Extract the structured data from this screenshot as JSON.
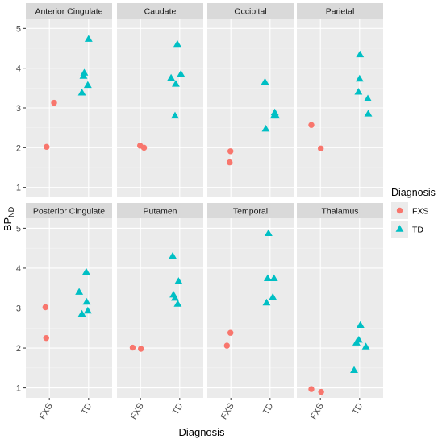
{
  "chart_data": {
    "type": "scatter",
    "xlabel": "Diagnosis",
    "ylabel_main": "BP",
    "ylabel_sub": "ND",
    "categories": [
      "FXS",
      "TD"
    ],
    "yticks": [
      1,
      2,
      3,
      4,
      5
    ],
    "ylim": [
      0.75,
      5.25
    ],
    "legend": {
      "title": "Diagnosis",
      "placement": "right",
      "items": [
        {
          "label": "FXS",
          "color": "#F8766D",
          "shape": "circle"
        },
        {
          "label": "TD",
          "color": "#00BFC4",
          "shape": "triangle"
        }
      ]
    },
    "facets": [
      {
        "name": "Anterior Cingulate",
        "series": [
          {
            "name": "FXS",
            "points": [
              [
                0.93,
                2.02
              ],
              [
                1.12,
                3.13
              ]
            ]
          },
          {
            "name": "TD",
            "points": [
              [
                1.83,
                3.38
              ],
              [
                1.87,
                3.8
              ],
              [
                1.89,
                3.88
              ],
              [
                1.98,
                3.57
              ],
              [
                2.0,
                4.73
              ]
            ]
          }
        ]
      },
      {
        "name": "Caudate",
        "series": [
          {
            "name": "FXS",
            "points": [
              [
                0.99,
                2.05
              ],
              [
                1.09,
                2.0
              ]
            ]
          },
          {
            "name": "TD",
            "points": [
              [
                1.78,
                3.75
              ],
              [
                1.88,
                2.8
              ],
              [
                1.9,
                3.6
              ],
              [
                1.94,
                4.6
              ],
              [
                2.03,
                3.85
              ]
            ]
          }
        ]
      },
      {
        "name": "Occipital",
        "series": [
          {
            "name": "FXS",
            "points": [
              [
                0.97,
                1.63
              ],
              [
                0.99,
                1.91
              ]
            ]
          },
          {
            "name": "TD",
            "points": [
              [
                1.87,
                3.65
              ],
              [
                1.89,
                2.47
              ],
              [
                2.1,
                2.8
              ],
              [
                2.12,
                2.88
              ],
              [
                2.15,
                2.8
              ]
            ]
          }
        ]
      },
      {
        "name": "Parietal",
        "series": [
          {
            "name": "FXS",
            "points": [
              [
                0.77,
                2.57
              ],
              [
                1.01,
                1.98
              ]
            ]
          },
          {
            "name": "TD",
            "points": [
              [
                1.97,
                3.4
              ],
              [
                2.0,
                3.73
              ],
              [
                2.01,
                4.34
              ],
              [
                2.21,
                3.23
              ],
              [
                2.22,
                2.85
              ]
            ]
          }
        ]
      },
      {
        "name": "Posterior Cingulate",
        "series": [
          {
            "name": "FXS",
            "points": [
              [
                0.9,
                3.02
              ],
              [
                0.92,
                2.25
              ]
            ]
          },
          {
            "name": "TD",
            "points": [
              [
                1.76,
                3.4
              ],
              [
                1.83,
                2.85
              ],
              [
                1.94,
                3.9
              ],
              [
                1.95,
                3.15
              ],
              [
                1.98,
                2.93
              ]
            ]
          }
        ]
      },
      {
        "name": "Putamen",
        "series": [
          {
            "name": "FXS",
            "points": [
              [
                0.8,
                2.01
              ],
              [
                1.01,
                1.98
              ]
            ]
          },
          {
            "name": "TD",
            "points": [
              [
                1.82,
                4.3
              ],
              [
                1.84,
                3.33
              ],
              [
                1.88,
                3.25
              ],
              [
                1.95,
                3.1
              ],
              [
                1.97,
                3.67
              ]
            ]
          }
        ]
      },
      {
        "name": "Temporal",
        "series": [
          {
            "name": "FXS",
            "points": [
              [
                0.9,
                2.06
              ],
              [
                0.99,
                2.38
              ]
            ]
          },
          {
            "name": "TD",
            "points": [
              [
                1.91,
                3.13
              ],
              [
                1.94,
                3.74
              ],
              [
                1.96,
                4.87
              ],
              [
                2.07,
                3.27
              ],
              [
                2.1,
                3.74
              ]
            ]
          }
        ]
      },
      {
        "name": "Thalamus",
        "series": [
          {
            "name": "FXS",
            "points": [
              [
                0.77,
                0.97
              ],
              [
                1.02,
                0.9
              ]
            ]
          },
          {
            "name": "TD",
            "points": [
              [
                1.86,
                1.44
              ],
              [
                1.92,
                2.13
              ],
              [
                1.98,
                2.2
              ],
              [
                2.02,
                2.57
              ],
              [
                2.16,
                2.03
              ]
            ]
          }
        ]
      }
    ]
  }
}
